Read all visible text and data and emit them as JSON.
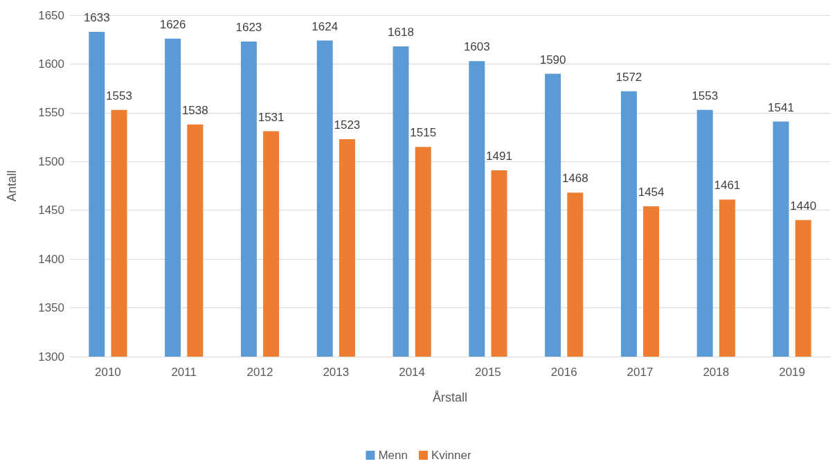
{
  "chart_data": {
    "type": "bar",
    "xlabel": "Årstall",
    "ylabel": "Antall",
    "categories": [
      "2010",
      "2011",
      "2012",
      "2013",
      "2014",
      "2015",
      "2016",
      "2017",
      "2018",
      "2019"
    ],
    "series": [
      {
        "name": "Menn",
        "color": "#5b9bd5",
        "values": [
          1633,
          1626,
          1623,
          1624,
          1618,
          1603,
          1590,
          1572,
          1553,
          1541
        ]
      },
      {
        "name": "Kvinner",
        "color": "#ed7d31",
        "values": [
          1553,
          1538,
          1531,
          1523,
          1515,
          1491,
          1468,
          1454,
          1461,
          1440
        ]
      }
    ],
    "ylim": [
      1300,
      1650
    ],
    "yticks": [
      1300,
      1350,
      1400,
      1450,
      1500,
      1550,
      1600,
      1650
    ],
    "grid": "y",
    "legend": "bottom",
    "data_labels": true
  }
}
